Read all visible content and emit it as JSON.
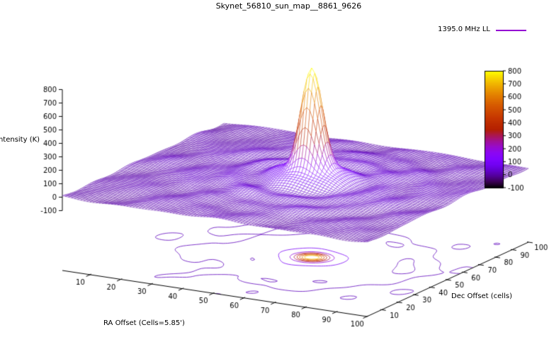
{
  "chart_data": {
    "type": "surface3d",
    "title": "Skynet_56810_sun_map__8861_9626",
    "legend": {
      "label": "1395.0 MHz LL",
      "sample_color": "#9400D3"
    },
    "xlabel": "RA Offset (Cells=5.85')",
    "ylabel": "Dec Offset (cells)",
    "zlabel": "Intensity (K)",
    "xrange": [
      1,
      100
    ],
    "yrange": [
      1,
      100
    ],
    "zrange": [
      -100,
      800
    ],
    "xticks": [
      10,
      20,
      30,
      40,
      50,
      60,
      70,
      80,
      90,
      100
    ],
    "yticks": [
      10,
      20,
      30,
      40,
      50,
      60,
      70,
      80,
      90,
      100
    ],
    "zticks": [
      -100,
      0,
      100,
      200,
      300,
      400,
      500,
      600,
      700,
      800
    ],
    "colorbar_ticks": [
      800,
      700,
      600,
      500,
      400,
      300,
      200,
      100,
      0,
      -100
    ],
    "background": "#ffffff",
    "text_color": "#000000",
    "palette_stops": [
      [
        0.0,
        "#000000"
      ],
      [
        0.05,
        "#39004F"
      ],
      [
        0.1,
        "#510096"
      ],
      [
        0.15,
        "#6300CE"
      ],
      [
        0.2,
        "#7202F3"
      ],
      [
        0.25,
        "#8004FF"
      ],
      [
        0.3,
        "#8C07F3"
      ],
      [
        0.35,
        "#970BCE"
      ],
      [
        0.4,
        "#A11096"
      ],
      [
        0.45,
        "#AB174F"
      ],
      [
        0.5,
        "#B42000"
      ],
      [
        0.55,
        "#BD2A00"
      ],
      [
        0.6,
        "#C63700"
      ],
      [
        0.65,
        "#CE4600"
      ],
      [
        0.7,
        "#D55700"
      ],
      [
        0.75,
        "#DD6C00"
      ],
      [
        0.8,
        "#E48300"
      ],
      [
        0.85,
        "#EB9D00"
      ],
      [
        0.9,
        "#F2BA00"
      ],
      [
        0.95,
        "#F9DB00"
      ],
      [
        1.0,
        "#FFFF00"
      ]
    ],
    "surface": {
      "grid_n": 100,
      "center": {
        "x": 55,
        "y": 52
      },
      "base_value": 0,
      "peak_value": 860,
      "components": [
        {
          "type": "gaussian",
          "amp": 660,
          "sigma": 3.2
        },
        {
          "type": "gaussian",
          "amp": 130,
          "sigma": 7
        },
        {
          "type": "gaussian",
          "amp": 40,
          "sigma": 30
        },
        {
          "type": "ripple",
          "amp": 30,
          "k": 0.55,
          "decay": 16
        }
      ],
      "noise_amp": 12
    },
    "contour_levels": [
      20,
      100,
      200,
      300,
      400,
      500,
      600,
      700
    ]
  }
}
